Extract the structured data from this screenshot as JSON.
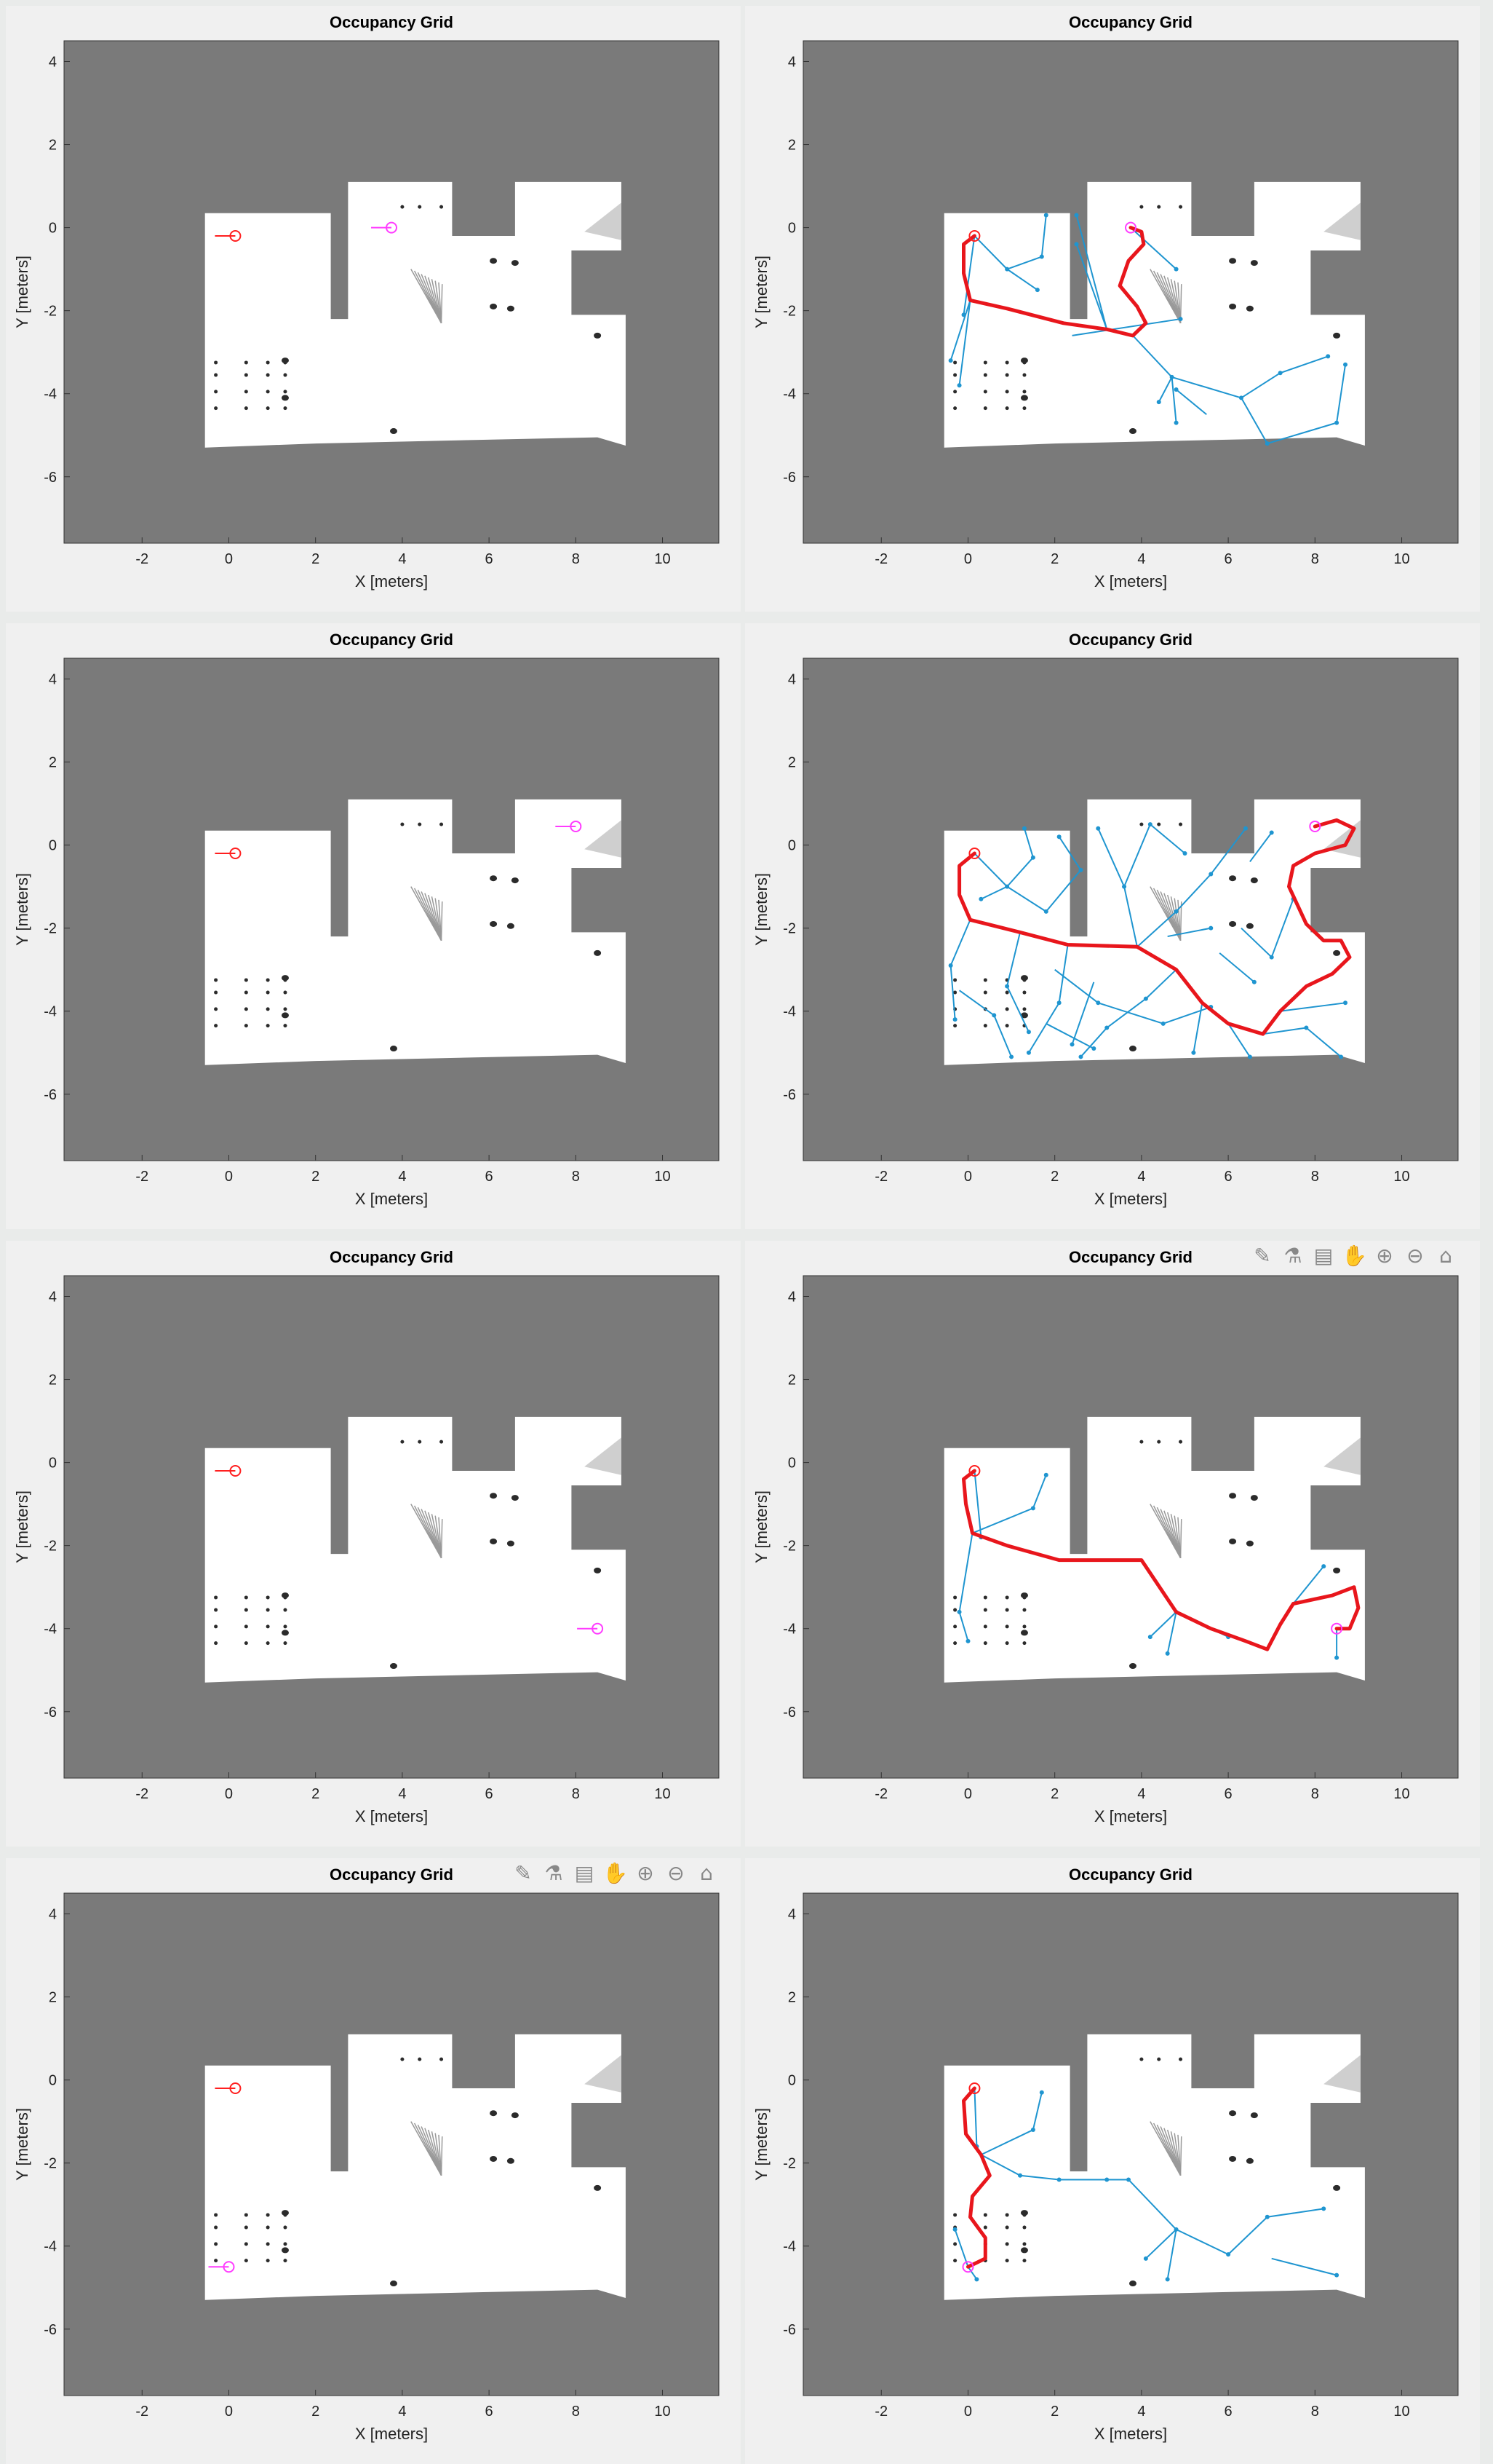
{
  "common": {
    "title": "Occupancy Grid",
    "xlabel": "X [meters]",
    "ylabel": "Y [meters]",
    "xticks": [
      -2,
      0,
      2,
      4,
      6,
      8,
      10
    ],
    "yticks": [
      4,
      2,
      0,
      -2,
      -4,
      -6
    ],
    "xlim": [
      -3.8,
      11.3
    ],
    "ylim": [
      -7.6,
      4.5
    ]
  },
  "colors": {
    "background": "#f0f0f0",
    "unknown": "#7a7a7a",
    "free": "#ffffff",
    "obstacle": "#2b2b2b",
    "start": "#ff1f1f",
    "goal": "#ff3cff",
    "path": "#e8161c",
    "tree": "#1f95d0"
  },
  "toolbar": {
    "icons": [
      "brush-icon",
      "flask-icon",
      "datatip-icon",
      "pan-hand-icon",
      "zoom-in-icon",
      "zoom-out-icon",
      "home-icon"
    ]
  },
  "chart_data": [
    {
      "type": "scatter",
      "title": "Occupancy Grid",
      "start": [
        0.15,
        -0.2
      ],
      "goal": [
        3.75,
        0.0
      ],
      "path": [],
      "tree": []
    },
    {
      "type": "line",
      "title": "Occupancy Grid",
      "start": [
        0.15,
        -0.2
      ],
      "goal": [
        3.75,
        0.0
      ],
      "path": [
        [
          0.15,
          -0.2
        ],
        [
          -0.1,
          -0.4
        ],
        [
          -0.1,
          -1.1
        ],
        [
          0.05,
          -1.75
        ],
        [
          0.9,
          -1.95
        ],
        [
          2.2,
          -2.3
        ],
        [
          3.2,
          -2.45
        ],
        [
          3.8,
          -2.6
        ],
        [
          4.1,
          -2.3
        ],
        [
          3.9,
          -1.9
        ],
        [
          3.5,
          -1.4
        ],
        [
          3.7,
          -0.8
        ],
        [
          4.05,
          -0.4
        ],
        [
          4.0,
          -0.1
        ],
        [
          3.75,
          0.0
        ]
      ],
      "tree": [
        [
          [
            0.15,
            -0.2
          ],
          [
            -0.1,
            -2.1
          ]
        ],
        [
          [
            0.15,
            -0.2
          ],
          [
            0.9,
            -1.0
          ]
        ],
        [
          [
            0.9,
            -1.0
          ],
          [
            1.7,
            -0.7
          ]
        ],
        [
          [
            1.7,
            -0.7
          ],
          [
            1.8,
            0.3
          ]
        ],
        [
          [
            0.9,
            -1.0
          ],
          [
            1.6,
            -1.5
          ]
        ],
        [
          [
            0.05,
            -1.75
          ],
          [
            -0.4,
            -3.2
          ]
        ],
        [
          [
            0.05,
            -1.75
          ],
          [
            -0.2,
            -3.8
          ]
        ],
        [
          [
            3.2,
            -2.45
          ],
          [
            2.5,
            -0.4
          ]
        ],
        [
          [
            3.2,
            -2.45
          ],
          [
            2.5,
            0.3
          ]
        ],
        [
          [
            3.75,
            0.0
          ],
          [
            4.8,
            -1.0
          ]
        ],
        [
          [
            3.8,
            -2.6
          ],
          [
            4.7,
            -3.6
          ]
        ],
        [
          [
            4.7,
            -3.6
          ],
          [
            4.8,
            -4.7
          ]
        ],
        [
          [
            4.7,
            -3.6
          ],
          [
            4.4,
            -4.2
          ]
        ],
        [
          [
            4.7,
            -3.6
          ],
          [
            6.3,
            -4.1
          ]
        ],
        [
          [
            6.3,
            -4.1
          ],
          [
            7.2,
            -3.5
          ]
        ],
        [
          [
            7.2,
            -3.5
          ],
          [
            8.3,
            -3.1
          ]
        ],
        [
          [
            6.3,
            -4.1
          ],
          [
            6.9,
            -5.2
          ]
        ],
        [
          [
            6.9,
            -5.2
          ],
          [
            8.5,
            -4.7
          ]
        ],
        [
          [
            8.5,
            -4.7
          ],
          [
            8.7,
            -3.3
          ]
        ],
        [
          [
            5.5,
            -4.5
          ],
          [
            4.8,
            -3.9
          ]
        ],
        [
          [
            2.4,
            -2.6
          ],
          [
            4.9,
            -2.2
          ]
        ]
      ]
    },
    {
      "type": "scatter",
      "title": "Occupancy Grid",
      "start": [
        0.15,
        -0.2
      ],
      "goal": [
        8.0,
        0.45
      ],
      "path": [],
      "tree": []
    },
    {
      "type": "line",
      "title": "Occupancy Grid",
      "start": [
        0.15,
        -0.2
      ],
      "goal": [
        8.0,
        0.45
      ],
      "path": [
        [
          0.15,
          -0.2
        ],
        [
          -0.2,
          -0.5
        ],
        [
          -0.2,
          -1.2
        ],
        [
          0.05,
          -1.8
        ],
        [
          1.2,
          -2.1
        ],
        [
          2.3,
          -2.4
        ],
        [
          3.9,
          -2.45
        ],
        [
          4.8,
          -3.0
        ],
        [
          5.4,
          -3.8
        ],
        [
          6.0,
          -4.3
        ],
        [
          6.8,
          -4.55
        ],
        [
          7.2,
          -4.0
        ],
        [
          7.8,
          -3.4
        ],
        [
          8.4,
          -3.1
        ],
        [
          8.8,
          -2.7
        ],
        [
          8.6,
          -2.3
        ],
        [
          8.2,
          -2.3
        ],
        [
          7.8,
          -1.9
        ],
        [
          7.4,
          -1.0
        ],
        [
          7.5,
          -0.5
        ],
        [
          8.0,
          -0.2
        ],
        [
          8.7,
          0.0
        ],
        [
          8.9,
          0.4
        ],
        [
          8.5,
          0.6
        ],
        [
          8.0,
          0.45
        ]
      ],
      "tree": [
        [
          [
            0.15,
            -0.2
          ],
          [
            0.9,
            -1.0
          ]
        ],
        [
          [
            0.9,
            -1.0
          ],
          [
            1.5,
            -0.3
          ]
        ],
        [
          [
            1.5,
            -0.3
          ],
          [
            1.3,
            0.4
          ]
        ],
        [
          [
            0.9,
            -1.0
          ],
          [
            0.3,
            -1.3
          ]
        ],
        [
          [
            0.9,
            -1.0
          ],
          [
            1.8,
            -1.6
          ]
        ],
        [
          [
            1.8,
            -1.6
          ],
          [
            2.6,
            -0.6
          ]
        ],
        [
          [
            2.6,
            -0.6
          ],
          [
            2.1,
            0.2
          ]
        ],
        [
          [
            0.05,
            -1.8
          ],
          [
            -0.4,
            -2.9
          ]
        ],
        [
          [
            -0.4,
            -2.9
          ],
          [
            -0.3,
            -4.2
          ]
        ],
        [
          [
            1.2,
            -2.1
          ],
          [
            0.9,
            -3.4
          ]
        ],
        [
          [
            0.9,
            -3.4
          ],
          [
            1.4,
            -4.5
          ]
        ],
        [
          [
            2.3,
            -2.4
          ],
          [
            2.1,
            -3.8
          ]
        ],
        [
          [
            2.1,
            -3.8
          ],
          [
            1.4,
            -5.0
          ]
        ],
        [
          [
            2.9,
            -3.3
          ],
          [
            2.4,
            -4.8
          ]
        ],
        [
          [
            3.9,
            -2.45
          ],
          [
            3.6,
            -1.0
          ]
        ],
        [
          [
            3.6,
            -1.0
          ],
          [
            3.0,
            0.4
          ]
        ],
        [
          [
            3.6,
            -1.0
          ],
          [
            4.2,
            0.5
          ]
        ],
        [
          [
            4.2,
            0.5
          ],
          [
            5.0,
            -0.2
          ]
        ],
        [
          [
            3.9,
            -2.45
          ],
          [
            4.8,
            -1.6
          ]
        ],
        [
          [
            4.8,
            -1.6
          ],
          [
            5.6,
            -0.7
          ]
        ],
        [
          [
            5.6,
            -0.7
          ],
          [
            6.4,
            0.4
          ]
        ],
        [
          [
            4.8,
            -3.0
          ],
          [
            4.1,
            -3.7
          ]
        ],
        [
          [
            4.1,
            -3.7
          ],
          [
            3.2,
            -4.4
          ]
        ],
        [
          [
            3.2,
            -4.4
          ],
          [
            2.6,
            -5.1
          ]
        ],
        [
          [
            5.4,
            -3.8
          ],
          [
            5.2,
            -5.0
          ]
        ],
        [
          [
            6.0,
            -4.3
          ],
          [
            6.5,
            -5.1
          ]
        ],
        [
          [
            6.8,
            -4.55
          ],
          [
            7.8,
            -4.4
          ]
        ],
        [
          [
            7.8,
            -4.4
          ],
          [
            8.6,
            -5.1
          ]
        ],
        [
          [
            7.2,
            -4.0
          ],
          [
            8.7,
            -3.8
          ]
        ],
        [
          [
            6.3,
            -2.0
          ],
          [
            7.0,
            -2.7
          ]
        ],
        [
          [
            7.0,
            -2.7
          ],
          [
            7.5,
            -1.3
          ]
        ],
        [
          [
            5.8,
            -2.6
          ],
          [
            6.6,
            -3.3
          ]
        ],
        [
          [
            4.6,
            -2.2
          ],
          [
            5.6,
            -2.0
          ]
        ],
        [
          [
            6.5,
            -0.4
          ],
          [
            7.0,
            0.3
          ]
        ],
        [
          [
            2.0,
            -3.0
          ],
          [
            3.0,
            -3.8
          ]
        ],
        [
          [
            3.0,
            -3.8
          ],
          [
            4.5,
            -4.3
          ]
        ],
        [
          [
            4.5,
            -4.3
          ],
          [
            5.6,
            -3.9
          ]
        ],
        [
          [
            -0.2,
            -3.5
          ],
          [
            0.6,
            -4.1
          ]
        ],
        [
          [
            0.6,
            -4.1
          ],
          [
            1.0,
            -5.1
          ]
        ],
        [
          [
            1.8,
            -4.3
          ],
          [
            2.9,
            -4.9
          ]
        ]
      ]
    },
    {
      "type": "scatter",
      "title": "Occupancy Grid",
      "start": [
        0.15,
        -0.2
      ],
      "goal": [
        8.5,
        -4.0
      ],
      "path": [],
      "tree": []
    },
    {
      "type": "line",
      "title": "Occupancy Grid",
      "start": [
        0.15,
        -0.2
      ],
      "goal": [
        8.5,
        -4.0
      ],
      "path": [
        [
          0.15,
          -0.2
        ],
        [
          -0.1,
          -0.4
        ],
        [
          -0.05,
          -1.0
        ],
        [
          0.1,
          -1.7
        ],
        [
          0.9,
          -2.0
        ],
        [
          2.1,
          -2.35
        ],
        [
          3.2,
          -2.35
        ],
        [
          4.0,
          -2.35
        ],
        [
          4.8,
          -3.6
        ],
        [
          5.6,
          -4.0
        ],
        [
          6.4,
          -4.3
        ],
        [
          6.9,
          -4.5
        ],
        [
          7.2,
          -3.9
        ],
        [
          7.5,
          -3.4
        ],
        [
          8.4,
          -3.2
        ],
        [
          8.9,
          -3.0
        ],
        [
          9.0,
          -3.5
        ],
        [
          8.8,
          -4.0
        ],
        [
          8.5,
          -4.0
        ]
      ],
      "tree": [
        [
          [
            0.15,
            -0.2
          ],
          [
            0.3,
            -1.8
          ]
        ],
        [
          [
            0.1,
            -1.7
          ],
          [
            1.5,
            -1.1
          ]
        ],
        [
          [
            1.5,
            -1.1
          ],
          [
            1.8,
            -0.3
          ]
        ],
        [
          [
            0.1,
            -1.7
          ],
          [
            -0.2,
            -3.6
          ]
        ],
        [
          [
            -0.2,
            -3.6
          ],
          [
            0.0,
            -4.3
          ]
        ],
        [
          [
            4.0,
            -2.35
          ],
          [
            4.8,
            -3.6
          ]
        ],
        [
          [
            4.8,
            -3.6
          ],
          [
            4.6,
            -4.6
          ]
        ],
        [
          [
            4.8,
            -3.6
          ],
          [
            4.2,
            -4.2
          ]
        ],
        [
          [
            4.8,
            -3.6
          ],
          [
            6.0,
            -4.2
          ]
        ],
        [
          [
            8.5,
            -4.0
          ],
          [
            8.5,
            -4.7
          ]
        ],
        [
          [
            7.5,
            -3.4
          ],
          [
            8.2,
            -2.5
          ]
        ]
      ]
    },
    {
      "type": "scatter",
      "title": "Occupancy Grid",
      "start": [
        0.15,
        -0.2
      ],
      "goal": [
        0.0,
        -4.5
      ],
      "path": [],
      "tree": []
    },
    {
      "type": "line",
      "title": "Occupancy Grid",
      "start": [
        0.15,
        -0.2
      ],
      "goal": [
        0.0,
        -4.5
      ],
      "path": [
        [
          0.15,
          -0.2
        ],
        [
          -0.1,
          -0.5
        ],
        [
          -0.05,
          -1.3
        ],
        [
          0.3,
          -1.8
        ],
        [
          0.5,
          -2.3
        ],
        [
          0.1,
          -2.8
        ],
        [
          0.05,
          -3.3
        ],
        [
          0.4,
          -3.8
        ],
        [
          0.4,
          -4.3
        ],
        [
          0.0,
          -4.5
        ]
      ],
      "tree": [
        [
          [
            0.15,
            -0.2
          ],
          [
            0.2,
            -1.6
          ]
        ],
        [
          [
            0.3,
            -1.8
          ],
          [
            1.5,
            -1.2
          ]
        ],
        [
          [
            1.5,
            -1.2
          ],
          [
            1.7,
            -0.3
          ]
        ],
        [
          [
            0.3,
            -1.8
          ],
          [
            1.2,
            -2.3
          ]
        ],
        [
          [
            1.2,
            -2.3
          ],
          [
            2.1,
            -2.4
          ]
        ],
        [
          [
            2.1,
            -2.4
          ],
          [
            3.2,
            -2.4
          ]
        ],
        [
          [
            3.2,
            -2.4
          ],
          [
            3.7,
            -2.4
          ]
        ],
        [
          [
            3.7,
            -2.4
          ],
          [
            4.8,
            -3.6
          ]
        ],
        [
          [
            4.8,
            -3.6
          ],
          [
            4.6,
            -4.8
          ]
        ],
        [
          [
            4.8,
            -3.6
          ],
          [
            4.1,
            -4.3
          ]
        ],
        [
          [
            4.8,
            -3.6
          ],
          [
            6.0,
            -4.2
          ]
        ],
        [
          [
            6.0,
            -4.2
          ],
          [
            6.9,
            -3.3
          ]
        ],
        [
          [
            6.9,
            -3.3
          ],
          [
            8.2,
            -3.1
          ]
        ],
        [
          [
            7.0,
            -4.3
          ],
          [
            8.5,
            -4.7
          ]
        ],
        [
          [
            0.0,
            -4.5
          ],
          [
            -0.3,
            -3.6
          ]
        ],
        [
          [
            0.0,
            -4.5
          ],
          [
            0.2,
            -4.8
          ]
        ]
      ]
    }
  ]
}
